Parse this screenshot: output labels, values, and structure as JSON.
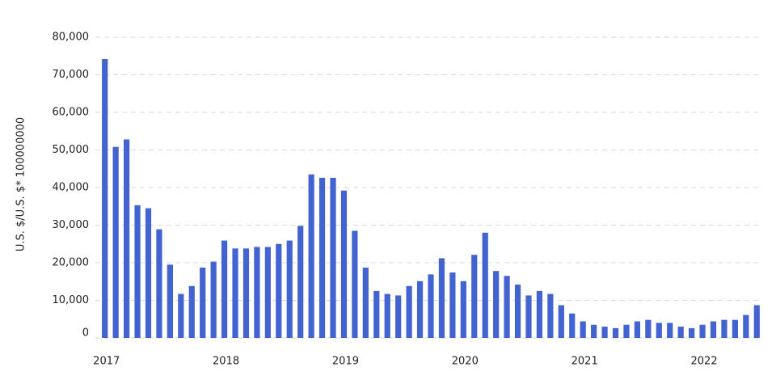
{
  "chart_data": {
    "type": "bar",
    "y_label": "U.S. $/U.S. $* 100000000",
    "categories": [
      "2017",
      null,
      null,
      null,
      null,
      null,
      null,
      null,
      null,
      null,
      null,
      "2018",
      null,
      null,
      null,
      null,
      null,
      null,
      null,
      null,
      null,
      null,
      "2019",
      null,
      null,
      null,
      null,
      null,
      null,
      null,
      null,
      null,
      null,
      "2020",
      null,
      null,
      null,
      null,
      null,
      null,
      null,
      null,
      null,
      null,
      "2021",
      null,
      null,
      null,
      null,
      null,
      null,
      null,
      null,
      null,
      null,
      "2022",
      null,
      null,
      null,
      null,
      null
    ],
    "values": [
      74200,
      50800,
      52800,
      35300,
      34500,
      28900,
      19500,
      11700,
      13800,
      18700,
      20300,
      25900,
      23800,
      23800,
      24200,
      24200,
      25000,
      25900,
      29800,
      43500,
      42600,
      42600,
      39200,
      28500,
      18700,
      12500,
      11700,
      11300,
      13800,
      15100,
      16900,
      21200,
      17400,
      15100,
      22100,
      28000,
      17800,
      16500,
      14200,
      11300,
      12500,
      11700,
      8700,
      6500,
      4400,
      3500,
      3000,
      2600,
      3500,
      4400,
      4800,
      4000,
      4000,
      3000,
      2600,
      3500,
      4400,
      4800,
      4800,
      6100,
      8700
    ],
    "color": "#4263d0",
    "ylim": [
      0,
      80000
    ],
    "yticks": [
      0,
      {
        "value": 10000,
        "label": "10,000"
      },
      {
        "value": 20000,
        "label": "20,000"
      },
      {
        "value": 30000,
        "label": "30,000"
      },
      {
        "value": 40000,
        "label": "40,000"
      },
      {
        "value": 50000,
        "label": "50,000"
      },
      {
        "value": 60000,
        "label": "60,000"
      },
      {
        "value": 70000,
        "label": "70,000"
      },
      {
        "value": 80000,
        "label": "80,000"
      }
    ],
    "grid": true
  }
}
